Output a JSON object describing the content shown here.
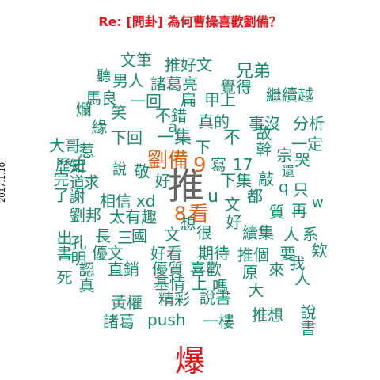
{
  "title": "Re: [問卦] 為何曹操喜歡劉備？",
  "date": "2017.1.10",
  "colors": {
    "title": "#e8141c",
    "common": "#1a8a6e",
    "mid": "#d8631a",
    "top": "#666666",
    "bottom": "#e8141c"
  },
  "words": [
    "推",
    "劉備",
    "9",
    "8",
    "看",
    "爆",
    "文筆",
    "推好文",
    "兄弟",
    "聽",
    "男人",
    "諸葛亮",
    "覺得",
    "繼續越",
    "馬良",
    "一回",
    "扁",
    "甲上",
    "爛",
    "笑",
    "不錯",
    "真的",
    "事沒",
    "分析",
    "a",
    "大哥",
    "緣",
    "下回",
    "一集",
    "下",
    "不",
    "故幹",
    "一定",
    "歷史",
    "惹",
    "寫",
    "17",
    "宗",
    "還",
    "哭",
    "完了",
    "知道",
    "說",
    "敬",
    "好",
    "下集",
    "敲",
    "q",
    "只",
    "謝",
    "求",
    "相信",
    "xd",
    "u",
    "文",
    "都",
    "w",
    "劉邦",
    "太有趣",
    "質",
    "再",
    "出書",
    "長",
    "國",
    "想",
    "很",
    "好",
    "續集",
    "人",
    "系",
    "孔明",
    "三",
    "文",
    "死",
    "優文",
    "好看",
    "期待",
    "推個",
    "要",
    "欸",
    "直銷",
    "優質",
    "喜歡",
    "原",
    "認真",
    "來",
    "我",
    "基情",
    "上",
    "嗎",
    "大",
    "黃權",
    "精彩",
    "說書",
    "人",
    "諸葛",
    "push",
    "一樓",
    "推想",
    "說書"
  ]
}
